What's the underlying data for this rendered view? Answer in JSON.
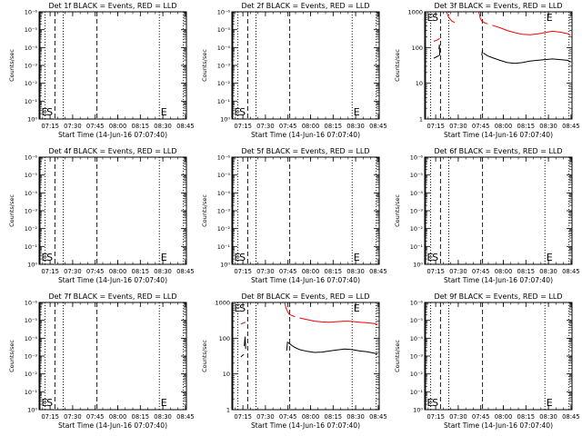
{
  "figure": {
    "xlabel": "Start Time (14-Jun-16 07:07:40)",
    "ylabel": "Counts/sec",
    "time_start": "07:07:40",
    "x_tick_labels": [
      "07:15",
      "07:30",
      "07:45",
      "08:00",
      "08:15",
      "08:30",
      "08:45"
    ],
    "x_tick_minutes": [
      7.33,
      22.33,
      37.33,
      52.33,
      67.33,
      82.33,
      97.33
    ],
    "x_range_minutes": [
      0,
      98
    ],
    "markers": [
      {
        "label": "E",
        "minute": 0.6,
        "style": "solid"
      },
      {
        "label": "S",
        "minute": 4.0,
        "style": "dotted"
      },
      {
        "label": "",
        "minute": 10.5,
        "style": "dashed"
      },
      {
        "label": "",
        "minute": 16.0,
        "style": "dotted"
      },
      {
        "label": "",
        "minute": 38.5,
        "style": "dashed"
      },
      {
        "label": "E",
        "minute": 80.0,
        "style": "dotted"
      },
      {
        "label": "",
        "minute": 96.0,
        "style": "dotted"
      }
    ],
    "colors": {
      "events": "#000000",
      "lld": "#ff0000",
      "axes": "#000000"
    }
  },
  "panels": [
    {
      "title": "Det 1f BLACK = Events, RED = LLD",
      "yscale": "empty",
      "y_tick_labels": [
        "10⁰",
        "10⁻¹",
        "10⁻²",
        "10⁻³",
        "10⁻⁴",
        "10⁻⁵",
        "10⁻⁶"
      ]
    },
    {
      "title": "Det 2f BLACK = Events, RED = LLD",
      "yscale": "empty",
      "y_tick_labels": [
        "10⁰",
        "10⁻¹",
        "10⁻²",
        "10⁻³",
        "10⁻⁴",
        "10⁻⁵",
        "10⁻⁶"
      ]
    },
    {
      "title": "Det 3f BLACK = Events, RED = LLD",
      "yscale": "log",
      "y_tick_labels": [
        "1",
        "10",
        "100",
        "1000"
      ]
    },
    {
      "title": "Det 4f BLACK = Events, RED = LLD",
      "yscale": "empty",
      "y_tick_labels": [
        "10⁰",
        "10⁻¹",
        "10⁻²",
        "10⁻³",
        "10⁻⁴",
        "10⁻⁵",
        "10⁻⁶"
      ]
    },
    {
      "title": "Det 5f BLACK = Events, RED = LLD",
      "yscale": "empty",
      "y_tick_labels": [
        "10⁰",
        "10⁻¹",
        "10⁻²",
        "10⁻³",
        "10⁻⁴",
        "10⁻⁵",
        "10⁻⁶"
      ]
    },
    {
      "title": "Det 6f BLACK = Events, RED = LLD",
      "yscale": "empty",
      "y_tick_labels": [
        "10⁰",
        "10⁻¹",
        "10⁻²",
        "10⁻³",
        "10⁻⁴",
        "10⁻⁵",
        "10⁻⁶"
      ]
    },
    {
      "title": "Det 7f BLACK = Events, RED = LLD",
      "yscale": "empty",
      "y_tick_labels": [
        "10⁰",
        "10⁻¹",
        "10⁻²",
        "10⁻³",
        "10⁻⁴",
        "10⁻⁵",
        "10⁻⁶"
      ]
    },
    {
      "title": "Det 8f BLACK = Events, RED = LLD",
      "yscale": "log",
      "y_tick_labels": [
        "1",
        "10",
        "100",
        "1000"
      ]
    },
    {
      "title": "Det 9f BLACK = Events, RED = LLD",
      "yscale": "empty",
      "y_tick_labels": [
        "10⁰",
        "10⁻¹",
        "10⁻²",
        "10⁻³",
        "10⁻⁴",
        "10⁻⁵",
        "10⁻⁶"
      ]
    }
  ],
  "chart_data": [
    {
      "type": "line",
      "title": "Det 1f BLACK = Events, RED = LLD",
      "xlabel": "Start Time (14-Jun-16 07:07:40)",
      "ylabel": "Counts/sec",
      "series": []
    },
    {
      "type": "line",
      "title": "Det 2f BLACK = Events, RED = LLD",
      "xlabel": "Start Time (14-Jun-16 07:07:40)",
      "ylabel": "Counts/sec",
      "series": []
    },
    {
      "type": "line",
      "title": "Det 3f BLACK = Events, RED = LLD",
      "xlabel": "Start Time (14-Jun-16 07:07:40)",
      "ylabel": "Counts/sec",
      "ylim": [
        1,
        1000
      ],
      "yscale": "log",
      "series": [
        {
          "name": "LLD",
          "color": "#ff0000",
          "segments": [
            {
              "x": [
                6.0,
                8.0,
                10.0
              ],
              "y": [
                150,
                160,
                180
              ]
            },
            {
              "x": [
                10.2,
                11,
                12,
                13,
                14
              ],
              "y": [
                1000,
                1000,
                1000,
                1000,
                1000
              ]
            },
            {
              "x": [
                14.5,
                16,
                18,
                20
              ],
              "y": [
                1000,
                700,
                550,
                500
              ]
            },
            {
              "x": [
                36.0,
                37,
                38,
                40,
                42
              ],
              "y": [
                1000,
                650,
                550,
                490,
                460
              ]
            },
            {
              "x": [
                45,
                50,
                55,
                60,
                65,
                70,
                75,
                80,
                85,
                90,
                95,
                97
              ],
              "y": [
                420,
                360,
                300,
                260,
                235,
                228,
                240,
                262,
                285,
                270,
                245,
                220
              ]
            }
          ]
        },
        {
          "name": "Events",
          "color": "#000000",
          "segments": [
            {
              "x": [
                6.0,
                8.0,
                9.5
              ],
              "y": [
                50,
                55,
                60
              ]
            },
            {
              "x": [
                9.5,
                9.8,
                10.0
              ],
              "y": [
                90,
                120,
                60
              ]
            },
            {
              "x": [
                38.0,
                38.5
              ],
              "y": [
                60,
                85
              ]
            },
            {
              "x": [
                39,
                42,
                45,
                50,
                55,
                60,
                65,
                70,
                75,
                80,
                85,
                90,
                95,
                97
              ],
              "y": [
                70,
                58,
                52,
                44,
                38,
                36,
                38,
                42,
                44,
                46,
                48,
                46,
                44,
                40
              ]
            }
          ]
        }
      ]
    },
    {
      "type": "line",
      "title": "Det 4f BLACK = Events, RED = LLD",
      "xlabel": "Start Time (14-Jun-16 07:07:40)",
      "ylabel": "Counts/sec",
      "series": []
    },
    {
      "type": "line",
      "title": "Det 5f BLACK = Events, RED = LLD",
      "xlabel": "Start Time (14-Jun-16 07:07:40)",
      "ylabel": "Counts/sec",
      "series": []
    },
    {
      "type": "line",
      "title": "Det 6f BLACK = Events, RED = LLD",
      "xlabel": "Start Time (14-Jun-16 07:07:40)",
      "ylabel": "Counts/sec",
      "series": []
    },
    {
      "type": "line",
      "title": "Det 7f BLACK = Events, RED = LLD",
      "xlabel": "Start Time (14-Jun-16 07:07:40)",
      "ylabel": "Counts/sec",
      "series": []
    },
    {
      "type": "line",
      "title": "Det 8f BLACK = Events, RED = LLD",
      "xlabel": "Start Time (14-Jun-16 07:07:40)",
      "ylabel": "Counts/sec",
      "ylim": [
        1,
        1000
      ],
      "yscale": "log",
      "series": [
        {
          "name": "LLD",
          "color": "#ff0000",
          "segments": [
            {
              "x": [
                6.0,
                7.0,
                8.0,
                9.0
              ],
              "y": [
                250,
                260,
                270,
                280
              ]
            },
            {
              "x": [
                9.2,
                10,
                11,
                12,
                13
              ],
              "y": [
                1000,
                1000,
                1000,
                1000,
                1000
              ]
            },
            {
              "x": [
                35.0,
                36,
                37,
                38,
                40,
                42
              ],
              "y": [
                1000,
                700,
                560,
                470,
                430,
                400
              ]
            },
            {
              "x": [
                45,
                50,
                55,
                60,
                65,
                70,
                75,
                80,
                85,
                90,
                95,
                97
              ],
              "y": [
                370,
                330,
                300,
                285,
                280,
                290,
                300,
                295,
                280,
                270,
                255,
                240
              ]
            }
          ]
        },
        {
          "name": "Events",
          "color": "#000000",
          "segments": [
            {
              "x": [
                6.0,
                7.0,
                8.0
              ],
              "y": [
                30,
                33,
                35
              ]
            },
            {
              "x": [
                8.2,
                8.8,
                9.2
              ],
              "y": [
                60,
                110,
                50
              ]
            },
            {
              "x": [
                36.5,
                37
              ],
              "y": [
                45,
                80
              ]
            },
            {
              "x": [
                37.5,
                40,
                42,
                45,
                50,
                55,
                60,
                65,
                70,
                75,
                80,
                85,
                90,
                95,
                97
              ],
              "y": [
                75,
                62,
                55,
                48,
                43,
                40,
                41,
                44,
                47,
                50,
                48,
                44,
                42,
                38,
                36
              ]
            }
          ]
        }
      ]
    },
    {
      "type": "line",
      "title": "Det 9f BLACK = Events, RED = LLD",
      "xlabel": "Start Time (14-Jun-16 07:07:40)",
      "ylabel": "Counts/sec",
      "series": []
    }
  ]
}
